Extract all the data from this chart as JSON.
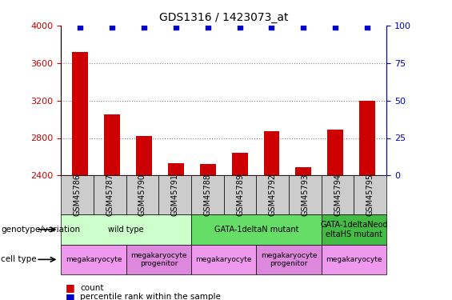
{
  "title": "GDS1316 / 1423073_at",
  "samples": [
    "GSM45786",
    "GSM45787",
    "GSM45790",
    "GSM45791",
    "GSM45788",
    "GSM45789",
    "GSM45792",
    "GSM45793",
    "GSM45794",
    "GSM45795"
  ],
  "counts": [
    3720,
    3050,
    2820,
    2530,
    2520,
    2640,
    2870,
    2490,
    2890,
    3200
  ],
  "percentile": [
    99,
    99,
    99,
    99,
    99,
    99,
    99,
    99,
    99,
    99
  ],
  "ylim_left": [
    2400,
    4000
  ],
  "ylim_right": [
    0,
    100
  ],
  "yticks_left": [
    2400,
    2800,
    3200,
    3600,
    4000
  ],
  "yticks_right": [
    0,
    25,
    50,
    75,
    100
  ],
  "bar_color": "#cc0000",
  "dot_color": "#0000cc",
  "bar_width": 0.5,
  "genotype_groups": [
    {
      "label": "wild type",
      "start": 0,
      "end": 3,
      "color": "#ccffcc"
    },
    {
      "label": "GATA-1deltaN mutant",
      "start": 4,
      "end": 7,
      "color": "#66dd66"
    },
    {
      "label": "GATA-1deltaNeod\neltaHS mutant",
      "start": 8,
      "end": 9,
      "color": "#44bb44"
    }
  ],
  "cell_type_groups": [
    {
      "label": "megakaryocyte",
      "start": 0,
      "end": 1,
      "color": "#ee99ee"
    },
    {
      "label": "megakaryocyte\nprogenitor",
      "start": 2,
      "end": 3,
      "color": "#dd88dd"
    },
    {
      "label": "megakaryocyte",
      "start": 4,
      "end": 5,
      "color": "#ee99ee"
    },
    {
      "label": "megakaryocyte\nprogenitor",
      "start": 6,
      "end": 7,
      "color": "#dd88dd"
    },
    {
      "label": "megakaryocyte",
      "start": 8,
      "end": 9,
      "color": "#ee99ee"
    }
  ],
  "left_label_color": "#cc0000",
  "right_label_color": "#0000cc",
  "grid_color": "#888888",
  "tick_bg_color": "#cccccc",
  "dotted_gridlines": [
    2800,
    3200,
    3600
  ]
}
